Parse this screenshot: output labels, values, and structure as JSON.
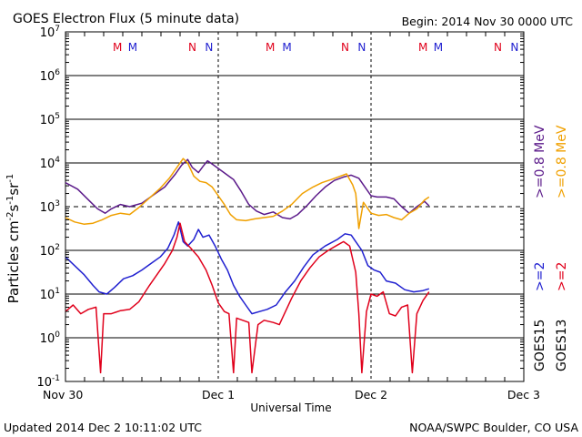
{
  "chart_data": {
    "type": "line",
    "title": "GOES Electron Flux (5 minute data)",
    "begin_label": "Begin: 2014 Nov 30 0000 UTC",
    "xlabel": "Universal Time",
    "ylabel_parts": {
      "base": "Particles cm",
      "exp1": "-2",
      "mid1": "s",
      "exp2": "-1",
      "mid2": "sr",
      "exp3": "-1"
    },
    "footer_left": "Updated 2014  Dec  2 10:11:02 UTC",
    "footer_right": "NOAA/SWPC Boulder, CO USA",
    "x_range_days": [
      0,
      3
    ],
    "x_ticks": [
      {
        "value": 0,
        "label": "Nov 30"
      },
      {
        "value": 1,
        "label": "Dec 1"
      },
      {
        "value": 2,
        "label": "Dec 2"
      },
      {
        "value": 3,
        "label": "Dec 3"
      }
    ],
    "y_scale": "log",
    "y_range_exp": [
      -1,
      7
    ],
    "y_ticks_exp": [
      -1,
      0,
      1,
      2,
      3,
      4,
      5,
      6,
      7
    ],
    "y_tick_base": "10",
    "threshold_exp": 3,
    "markers": [
      {
        "label": "M",
        "day": 0.34,
        "color": "#e0001b"
      },
      {
        "label": "M",
        "day": 0.44,
        "color": "#2020d0"
      },
      {
        "label": "N",
        "day": 0.83,
        "color": "#e0001b"
      },
      {
        "label": "N",
        "day": 0.94,
        "color": "#2020d0"
      },
      {
        "label": "M",
        "day": 1.34,
        "color": "#e0001b"
      },
      {
        "label": "M",
        "day": 1.45,
        "color": "#2020d0"
      },
      {
        "label": "N",
        "day": 1.83,
        "color": "#e0001b"
      },
      {
        "label": "N",
        "day": 1.94,
        "color": "#2020d0"
      },
      {
        "label": "M",
        "day": 2.34,
        "color": "#e0001b"
      },
      {
        "label": "M",
        "day": 2.44,
        "color": "#2020d0"
      },
      {
        "label": "N",
        "day": 2.83,
        "color": "#e0001b"
      },
      {
        "label": "N",
        "day": 2.94,
        "color": "#2020d0"
      }
    ],
    "legend_rows": [
      {
        "items": [
          {
            "text": ">=0.8  MeV",
            "color": "#5b1a8a"
          },
          {
            "text": ">=0.8  MeV",
            "color": "#f0a000"
          }
        ]
      },
      {
        "items": [
          {
            "text": ">=2",
            "color": "#2020d0"
          },
          {
            "text": ">=2",
            "color": "#e0001b"
          }
        ]
      },
      {
        "items": [
          {
            "text": "GOES15",
            "color": "#000000"
          },
          {
            "text": "GOES13",
            "color": "#000000"
          }
        ]
      }
    ],
    "series": [
      {
        "name": "GOES15 >=0.8 MeV",
        "color": "#5b1a8a",
        "points": [
          [
            0,
            3.55
          ],
          [
            0.08,
            3.4
          ],
          [
            0.16,
            3.12
          ],
          [
            0.21,
            2.95
          ],
          [
            0.26,
            2.85
          ],
          [
            0.3,
            2.95
          ],
          [
            0.36,
            3.05
          ],
          [
            0.42,
            3.0
          ],
          [
            0.5,
            3.08
          ],
          [
            0.58,
            3.28
          ],
          [
            0.65,
            3.45
          ],
          [
            0.72,
            3.75
          ],
          [
            0.76,
            3.95
          ],
          [
            0.8,
            4.08
          ],
          [
            0.83,
            3.9
          ],
          [
            0.87,
            3.78
          ],
          [
            0.9,
            3.92
          ],
          [
            0.93,
            4.05
          ],
          [
            0.97,
            3.95
          ],
          [
            1.03,
            3.8
          ],
          [
            1.1,
            3.62
          ],
          [
            1.15,
            3.35
          ],
          [
            1.2,
            3.05
          ],
          [
            1.25,
            2.9
          ],
          [
            1.3,
            2.82
          ],
          [
            1.36,
            2.88
          ],
          [
            1.42,
            2.75
          ],
          [
            1.47,
            2.72
          ],
          [
            1.52,
            2.82
          ],
          [
            1.58,
            3.02
          ],
          [
            1.64,
            3.25
          ],
          [
            1.7,
            3.45
          ],
          [
            1.76,
            3.6
          ],
          [
            1.82,
            3.68
          ],
          [
            1.87,
            3.72
          ],
          [
            1.92,
            3.65
          ],
          [
            1.96,
            3.45
          ],
          [
            2.0,
            3.25
          ],
          [
            2.04,
            3.22
          ],
          [
            2.1,
            3.22
          ],
          [
            2.15,
            3.18
          ],
          [
            2.2,
            3.0
          ],
          [
            2.25,
            2.85
          ],
          [
            2.3,
            3.0
          ],
          [
            2.35,
            3.12
          ],
          [
            2.38,
            3.02
          ]
        ]
      },
      {
        "name": "GOES13 >=0.8 MeV",
        "color": "#f0a000",
        "points": [
          [
            0,
            2.75
          ],
          [
            0.06,
            2.65
          ],
          [
            0.12,
            2.6
          ],
          [
            0.18,
            2.62
          ],
          [
            0.24,
            2.7
          ],
          [
            0.3,
            2.8
          ],
          [
            0.36,
            2.85
          ],
          [
            0.42,
            2.82
          ],
          [
            0.48,
            2.98
          ],
          [
            0.55,
            3.2
          ],
          [
            0.62,
            3.42
          ],
          [
            0.68,
            3.65
          ],
          [
            0.73,
            3.9
          ],
          [
            0.77,
            4.1
          ],
          [
            0.8,
            4.0
          ],
          [
            0.84,
            3.7
          ],
          [
            0.88,
            3.58
          ],
          [
            0.92,
            3.55
          ],
          [
            0.96,
            3.45
          ],
          [
            1.0,
            3.25
          ],
          [
            1.04,
            3.05
          ],
          [
            1.08,
            2.82
          ],
          [
            1.12,
            2.7
          ],
          [
            1.18,
            2.68
          ],
          [
            1.24,
            2.72
          ],
          [
            1.3,
            2.75
          ],
          [
            1.36,
            2.78
          ],
          [
            1.42,
            2.9
          ],
          [
            1.48,
            3.05
          ],
          [
            1.55,
            3.3
          ],
          [
            1.62,
            3.45
          ],
          [
            1.68,
            3.55
          ],
          [
            1.74,
            3.62
          ],
          [
            1.8,
            3.7
          ],
          [
            1.84,
            3.75
          ],
          [
            1.88,
            3.5
          ],
          [
            1.9,
            3.3
          ],
          [
            1.92,
            2.5
          ],
          [
            1.95,
            3.1
          ],
          [
            2.0,
            2.85
          ],
          [
            2.05,
            2.8
          ],
          [
            2.1,
            2.82
          ],
          [
            2.15,
            2.75
          ],
          [
            2.2,
            2.7
          ],
          [
            2.25,
            2.85
          ],
          [
            2.3,
            2.95
          ],
          [
            2.35,
            3.15
          ],
          [
            2.38,
            3.22
          ]
        ]
      },
      {
        "name": "GOES15 >=2",
        "color": "#2020d0",
        "points": [
          [
            0,
            1.85
          ],
          [
            0.06,
            1.65
          ],
          [
            0.12,
            1.45
          ],
          [
            0.18,
            1.2
          ],
          [
            0.22,
            1.05
          ],
          [
            0.27,
            1.0
          ],
          [
            0.32,
            1.15
          ],
          [
            0.38,
            1.35
          ],
          [
            0.44,
            1.42
          ],
          [
            0.5,
            1.55
          ],
          [
            0.56,
            1.7
          ],
          [
            0.62,
            1.85
          ],
          [
            0.67,
            2.05
          ],
          [
            0.71,
            2.35
          ],
          [
            0.74,
            2.65
          ],
          [
            0.77,
            2.2
          ],
          [
            0.8,
            2.1
          ],
          [
            0.84,
            2.25
          ],
          [
            0.87,
            2.48
          ],
          [
            0.9,
            2.3
          ],
          [
            0.94,
            2.35
          ],
          [
            0.98,
            2.1
          ],
          [
            1.02,
            1.8
          ],
          [
            1.06,
            1.55
          ],
          [
            1.1,
            1.2
          ],
          [
            1.14,
            0.95
          ],
          [
            1.18,
            0.75
          ],
          [
            1.22,
            0.55
          ],
          [
            1.27,
            0.6
          ],
          [
            1.32,
            0.65
          ],
          [
            1.38,
            0.75
          ],
          [
            1.44,
            1.05
          ],
          [
            1.5,
            1.3
          ],
          [
            1.56,
            1.62
          ],
          [
            1.62,
            1.9
          ],
          [
            1.7,
            2.1
          ],
          [
            1.78,
            2.25
          ],
          [
            1.83,
            2.38
          ],
          [
            1.87,
            2.35
          ],
          [
            1.9,
            2.2
          ],
          [
            1.94,
            2.0
          ],
          [
            1.98,
            1.65
          ],
          [
            2.02,
            1.55
          ],
          [
            2.06,
            1.5
          ],
          [
            2.1,
            1.3
          ],
          [
            2.16,
            1.25
          ],
          [
            2.22,
            1.1
          ],
          [
            2.28,
            1.05
          ],
          [
            2.34,
            1.08
          ],
          [
            2.38,
            1.12
          ]
        ]
      },
      {
        "name": "GOES13 >=2",
        "color": "#e0001b",
        "points": [
          [
            0,
            0.6
          ],
          [
            0.05,
            0.75
          ],
          [
            0.1,
            0.55
          ],
          [
            0.15,
            0.65
          ],
          [
            0.2,
            0.7
          ],
          [
            0.23,
            -0.8
          ],
          [
            0.25,
            0.55
          ],
          [
            0.3,
            0.55
          ],
          [
            0.36,
            0.62
          ],
          [
            0.42,
            0.65
          ],
          [
            0.48,
            0.82
          ],
          [
            0.55,
            1.2
          ],
          [
            0.6,
            1.45
          ],
          [
            0.65,
            1.7
          ],
          [
            0.7,
            2.0
          ],
          [
            0.73,
            2.3
          ],
          [
            0.75,
            2.62
          ],
          [
            0.78,
            2.2
          ],
          [
            0.82,
            2.05
          ],
          [
            0.87,
            1.85
          ],
          [
            0.92,
            1.55
          ],
          [
            0.96,
            1.2
          ],
          [
            1.0,
            0.8
          ],
          [
            1.04,
            0.6
          ],
          [
            1.07,
            0.55
          ],
          [
            1.1,
            -0.8
          ],
          [
            1.12,
            0.45
          ],
          [
            1.16,
            0.4
          ],
          [
            1.2,
            0.35
          ],
          [
            1.22,
            -0.8
          ],
          [
            1.26,
            0.3
          ],
          [
            1.3,
            0.4
          ],
          [
            1.36,
            0.35
          ],
          [
            1.4,
            0.3
          ],
          [
            1.44,
            0.6
          ],
          [
            1.48,
            0.9
          ],
          [
            1.54,
            1.3
          ],
          [
            1.6,
            1.6
          ],
          [
            1.66,
            1.85
          ],
          [
            1.72,
            2.0
          ],
          [
            1.78,
            2.12
          ],
          [
            1.82,
            2.2
          ],
          [
            1.86,
            2.1
          ],
          [
            1.9,
            1.5
          ],
          [
            1.92,
            0.55
          ],
          [
            1.94,
            -0.8
          ],
          [
            1.97,
            0.6
          ],
          [
            2.0,
            1.0
          ],
          [
            2.04,
            0.95
          ],
          [
            2.08,
            1.05
          ],
          [
            2.12,
            0.55
          ],
          [
            2.16,
            0.5
          ],
          [
            2.2,
            0.7
          ],
          [
            2.24,
            0.75
          ],
          [
            2.27,
            -0.8
          ],
          [
            2.3,
            0.55
          ],
          [
            2.34,
            0.85
          ],
          [
            2.38,
            1.05
          ]
        ]
      }
    ]
  }
}
